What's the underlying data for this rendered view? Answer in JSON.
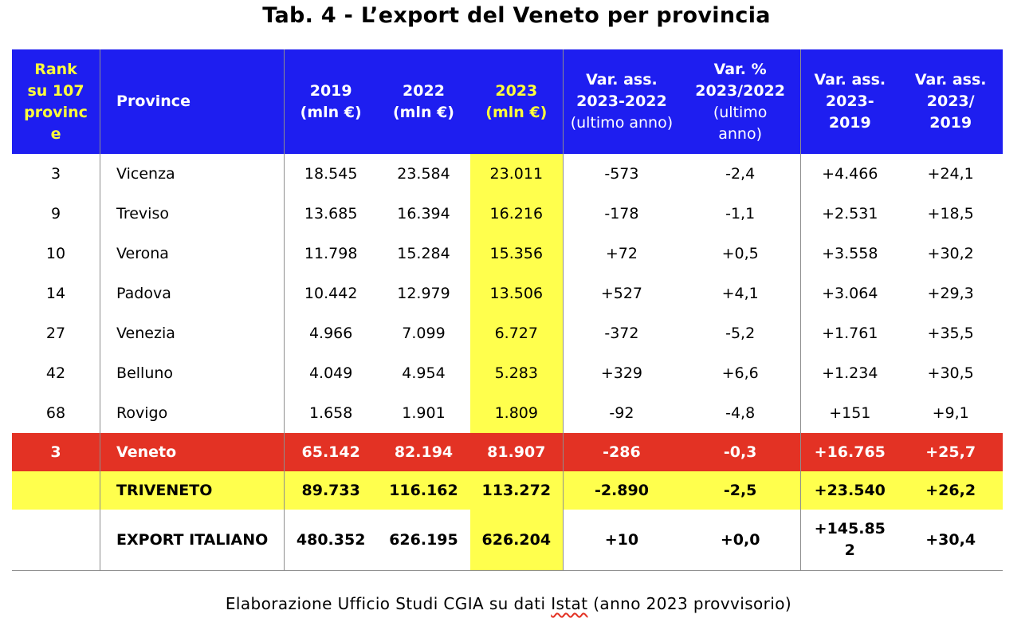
{
  "title": "Tab. 4 - L’export del Veneto per provincia",
  "header": {
    "rank_lines": [
      "Rank",
      "su 107",
      "provinc",
      "e"
    ],
    "province": "Province",
    "y2019": [
      "2019",
      "(mln €)"
    ],
    "y2022": [
      "2022",
      "(mln €)"
    ],
    "y2023": [
      "2023",
      "(mln €)"
    ],
    "var_ass_2223": [
      "Var. ass.",
      "2023-2022",
      "(ultimo anno)"
    ],
    "var_pct_2223": [
      "Var. %",
      "2023/2022",
      "(ultimo",
      "anno)"
    ],
    "var_ass_2319": [
      "Var. ass.",
      "2023-",
      "2019"
    ],
    "var_ass_2319b": [
      "Var. ass.",
      "2023/",
      "2019"
    ]
  },
  "rows": [
    {
      "rank": "3",
      "province": "Vicenza",
      "y2019": "18.545",
      "y2022": "23.584",
      "y2023": "23.011",
      "var_ass_2223": "-573",
      "var_pct_2223": "-2,4",
      "var_ass_2319": "+4.466",
      "var_ass_2319b": "+24,1"
    },
    {
      "rank": "9",
      "province": "Treviso",
      "y2019": "13.685",
      "y2022": "16.394",
      "y2023": "16.216",
      "var_ass_2223": "-178",
      "var_pct_2223": "-1,1",
      "var_ass_2319": "+2.531",
      "var_ass_2319b": "+18,5"
    },
    {
      "rank": "10",
      "province": "Verona",
      "y2019": "11.798",
      "y2022": "15.284",
      "y2023": "15.356",
      "var_ass_2223": "+72",
      "var_pct_2223": "+0,5",
      "var_ass_2319": "+3.558",
      "var_ass_2319b": "+30,2"
    },
    {
      "rank": "14",
      "province": "Padova",
      "y2019": "10.442",
      "y2022": "12.979",
      "y2023": "13.506",
      "var_ass_2223": "+527",
      "var_pct_2223": "+4,1",
      "var_ass_2319": "+3.064",
      "var_ass_2319b": "+29,3"
    },
    {
      "rank": "27",
      "province": "Venezia",
      "y2019": "4.966",
      "y2022": "7.099",
      "y2023": "6.727",
      "var_ass_2223": "-372",
      "var_pct_2223": "-5,2",
      "var_ass_2319": "+1.761",
      "var_ass_2319b": "+35,5"
    },
    {
      "rank": "42",
      "province": "Belluno",
      "y2019": "4.049",
      "y2022": "4.954",
      "y2023": "5.283",
      "var_ass_2223": "+329",
      "var_pct_2223": "+6,6",
      "var_ass_2319": "+1.234",
      "var_ass_2319b": "+30,5"
    },
    {
      "rank": "68",
      "province": "Rovigo",
      "y2019": "1.658",
      "y2022": "1.901",
      "y2023": "1.809",
      "var_ass_2223": "-92",
      "var_pct_2223": "-4,8",
      "var_ass_2319": "+151",
      "var_ass_2319b": "+9,1"
    }
  ],
  "veneto": {
    "rank": "3",
    "province": "Veneto",
    "y2019": "65.142",
    "y2022": "82.194",
    "y2023": "81.907",
    "var_ass_2223": "-286",
    "var_pct_2223": "-0,3",
    "var_ass_2319": "+16.765",
    "var_ass_2319b": "+25,7"
  },
  "triveneto": {
    "rank": "",
    "province": "TRIVENETO",
    "y2019": "89.733",
    "y2022": "116.162",
    "y2023": "113.272",
    "var_ass_2223": "-2.890",
    "var_pct_2223": "-2,5",
    "var_ass_2319": "+23.540",
    "var_ass_2319b": "+26,2"
  },
  "italia": {
    "rank": "",
    "province": "EXPORT ITALIANO",
    "y2019": "480.352",
    "y2022": "626.195",
    "y2023": "626.204",
    "var_ass_2223": "+10",
    "var_pct_2223": "+0,0",
    "var_ass_2319_lines": [
      "+145.85",
      "2"
    ],
    "var_ass_2319b": "+30,4"
  },
  "note": {
    "before": "Elaborazione Ufficio Studi CGIA su dati ",
    "underlined": "Istat",
    "after": " (anno 2023 provvisorio)"
  },
  "colors": {
    "header_blue": "#1e1ef0",
    "header_yellow_text": "#ffff3a",
    "highlight_yellow": "#ffff4d",
    "veneto_red": "#e33224"
  }
}
